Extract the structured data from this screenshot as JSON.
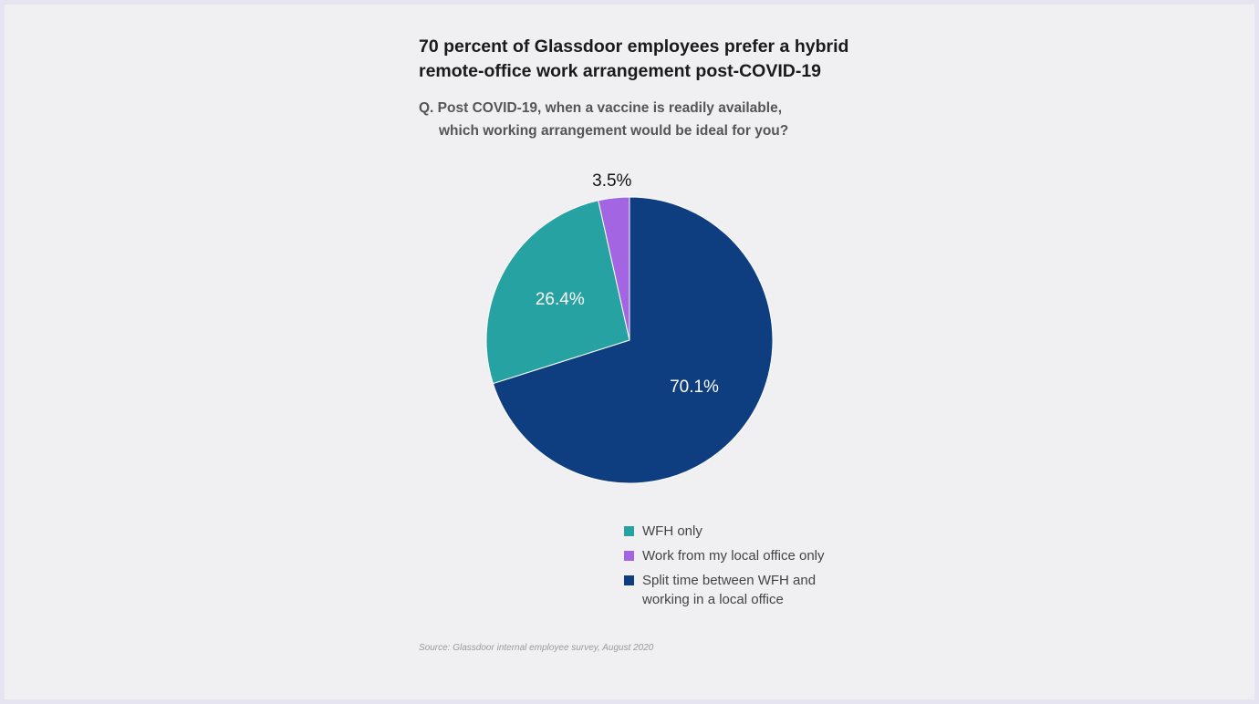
{
  "chart_data": {
    "type": "pie",
    "title": "70 percent of Glassdoor employees prefer a hybrid\nremote-office work arrangement post-COVID-19",
    "subtitle_line1": "Q. Post COVID-19, when a vaccine is readily available,",
    "subtitle_line2": "which working arrangement would be ideal for you?",
    "slices": [
      {
        "label": "Split time between WFH and working in a local office",
        "value": 70.1,
        "value_label": "70.1%",
        "color": "#0e3d80"
      },
      {
        "label": "WFH only",
        "value": 26.4,
        "value_label": "26.4%",
        "color": "#27a2a2"
      },
      {
        "label": "Work from my local office only",
        "value": 3.5,
        "value_label": "3.5%",
        "color": "#a465e3"
      }
    ],
    "legend": [
      {
        "label": "WFH only",
        "color": "#27a2a2"
      },
      {
        "label": "Work from my local office only",
        "color": "#a465e3"
      },
      {
        "label": "Split time between WFH and working in a local office",
        "color": "#0e3d80"
      }
    ],
    "legend_position": "bottom",
    "source": "Source: Glassdoor internal employee survey, August 2020"
  }
}
